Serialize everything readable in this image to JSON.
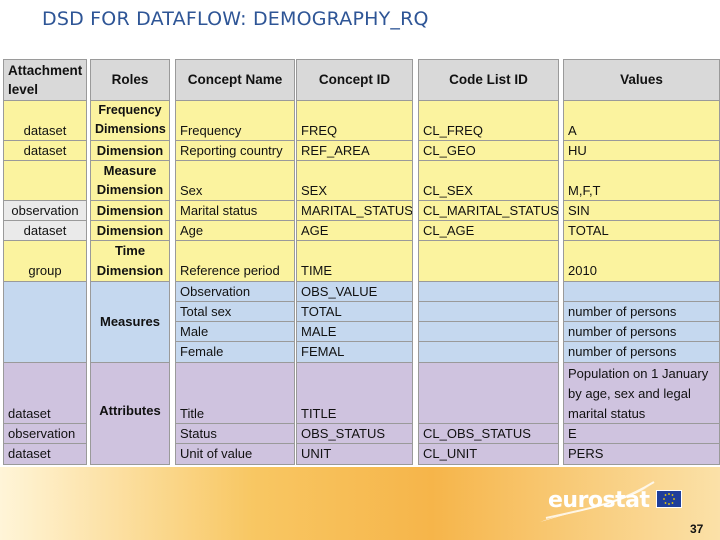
{
  "title": "DSD FOR DATAFLOW: DEMOGRAPHY_RQ",
  "headers": {
    "attachment_level": "Attachment level",
    "roles": "Roles",
    "concept_name": "Concept Name",
    "concept_id": "Concept ID",
    "code_list_id": "Code List ID",
    "values": "Values"
  },
  "attachment": {
    "r1": "dataset",
    "r2": "dataset",
    "r3": "observation",
    "r4": "dataset",
    "r5": "group",
    "r6": "dataset",
    "r7": "observation",
    "r8": "dataset"
  },
  "roles": {
    "frequency_dimension": "Frequency Dimensions",
    "dimension_1": "Dimension",
    "measure_dimension": "Measure Dimension",
    "dimension_2": "Dimension",
    "dimension_3": "Dimension",
    "time_dimension": "Time Dimension",
    "measures": "Measures",
    "attributes": "Attributes"
  },
  "concept_names": [
    "Frequency",
    "Reporting country",
    "Sex",
    "Marital status",
    "Age",
    "Reference period",
    "Observation",
    "Total sex",
    "Male",
    "Female",
    "Title",
    "Status",
    "Unit of value"
  ],
  "concept_ids": [
    "FREQ",
    "REF_AREA",
    "SEX",
    "MARITAL_STATUS",
    "AGE",
    "TIME",
    "OBS_VALUE",
    "TOTAL",
    "MALE",
    "FEMAL",
    "TITLE",
    "OBS_STATUS",
    "UNIT"
  ],
  "code_lists": {
    "freq": "CL_FREQ",
    "geo": "CL_GEO",
    "sex": "CL_SEX",
    "marital": "CL_MARITAL_STATUS",
    "age": "CL_AGE",
    "obs_status": "CL_OBS_STATUS",
    "unit": "CL_UNIT"
  },
  "values": {
    "freq": "A",
    "geo": "HU",
    "sex": "M,F,T",
    "marital": "SIN",
    "age": "TOTAL",
    "time": "2010",
    "total": "number of persons",
    "male": "number of persons",
    "female": "number of persons",
    "title_line1": "Population on 1 January",
    "title_line2": "by age, sex and legal",
    "title_line3": "marital status",
    "obs_status": "E",
    "unit": "PERS"
  },
  "logo": "eurostat",
  "page_number": "37"
}
